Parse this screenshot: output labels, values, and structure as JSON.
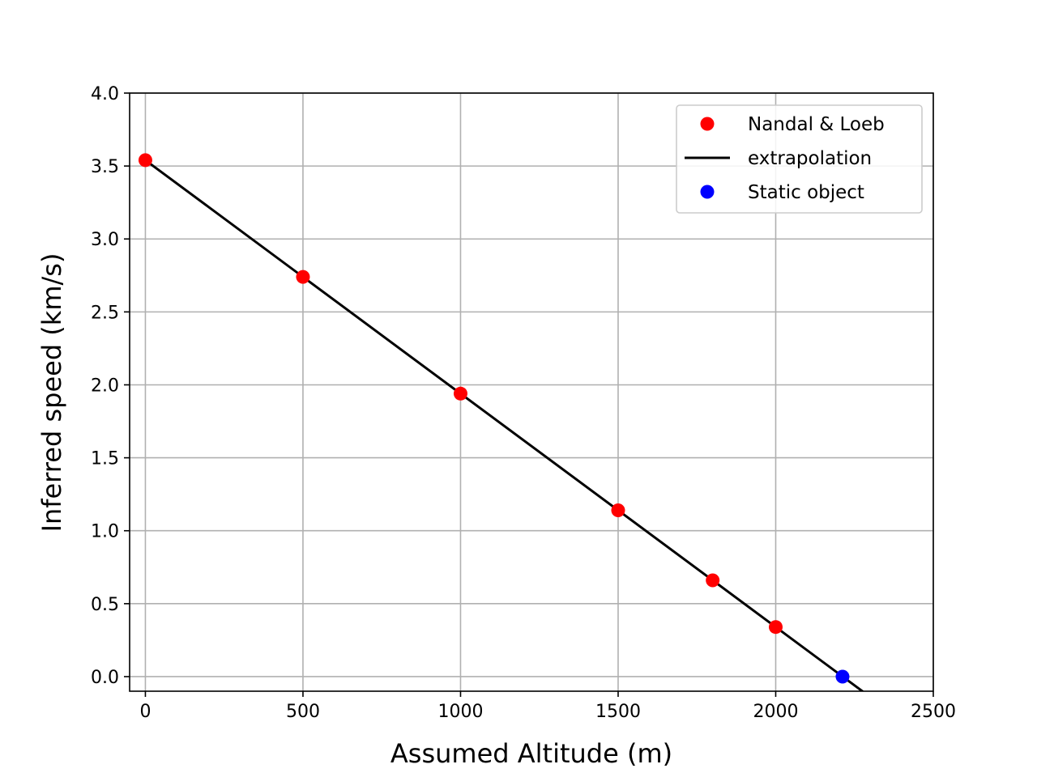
{
  "chart_data": {
    "type": "scatter",
    "xlabel": "Assumed Altitude (m)",
    "ylabel": "Inferred speed (km/s)",
    "xlim": [
      -50,
      2500
    ],
    "ylim": [
      -0.1,
      4.0
    ],
    "x_ticks": [
      0,
      500,
      1000,
      1500,
      2000,
      2500
    ],
    "x_tick_labels": [
      "0",
      "500",
      "1000",
      "1500",
      "2000",
      "2500"
    ],
    "y_ticks": [
      0.0,
      0.5,
      1.0,
      1.5,
      2.0,
      2.5,
      3.0,
      3.5,
      4.0
    ],
    "y_tick_labels": [
      "0.0",
      "0.5",
      "1.0",
      "1.5",
      "2.0",
      "2.5",
      "3.0",
      "3.5",
      "4.0"
    ],
    "grid": true,
    "legend_position": "top-right",
    "series": [
      {
        "name": "Nandal & Loeb",
        "kind": "points",
        "color": "#ff0000",
        "x": [
          0,
          500,
          1000,
          1500,
          1800,
          2000
        ],
        "y": [
          3.54,
          2.74,
          1.94,
          1.14,
          0.66,
          0.34
        ]
      },
      {
        "name": "extrapolation",
        "kind": "line",
        "color": "#000000",
        "x": [
          0,
          2400
        ],
        "y": [
          3.54,
          -0.3
        ]
      },
      {
        "name": "Static object",
        "kind": "points",
        "color": "#0000ff",
        "x": [
          2212
        ],
        "y": [
          0.0
        ]
      }
    ]
  }
}
